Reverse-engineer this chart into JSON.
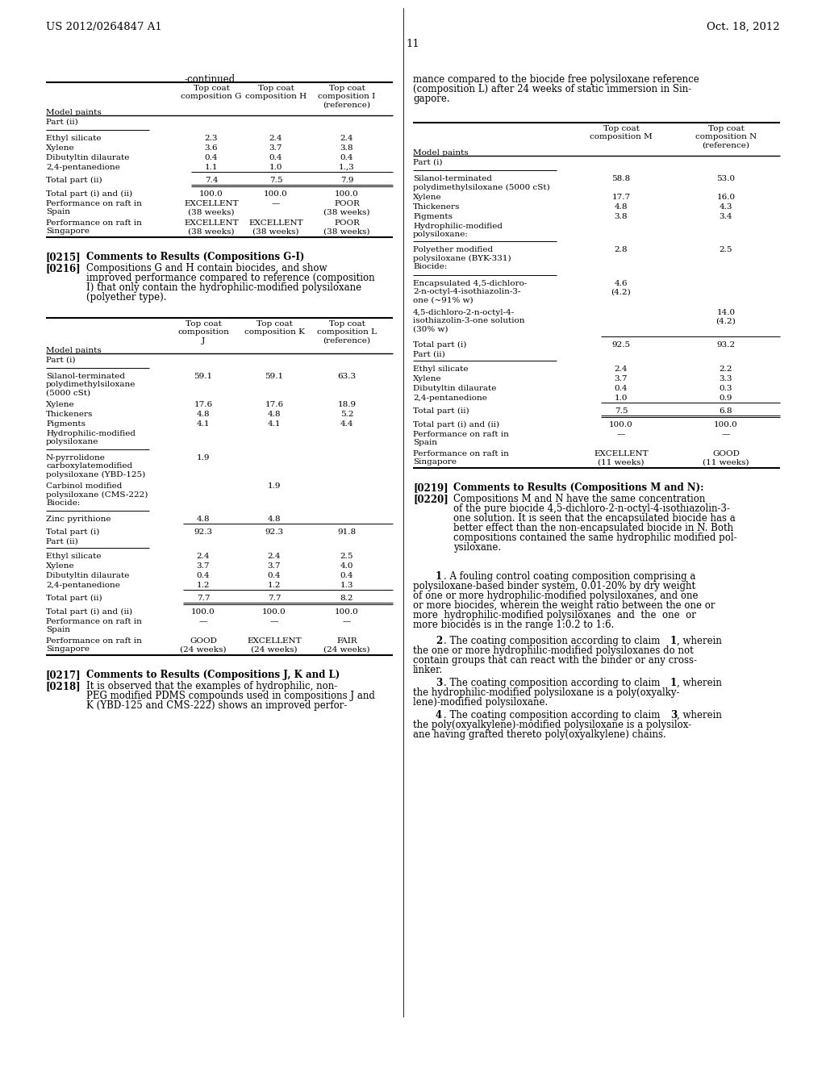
{
  "header_left": "US 2012/0264847 A1",
  "header_right": "Oct. 18, 2012",
  "page_number": "11",
  "bg": "#ffffff",
  "fg": "#000000"
}
